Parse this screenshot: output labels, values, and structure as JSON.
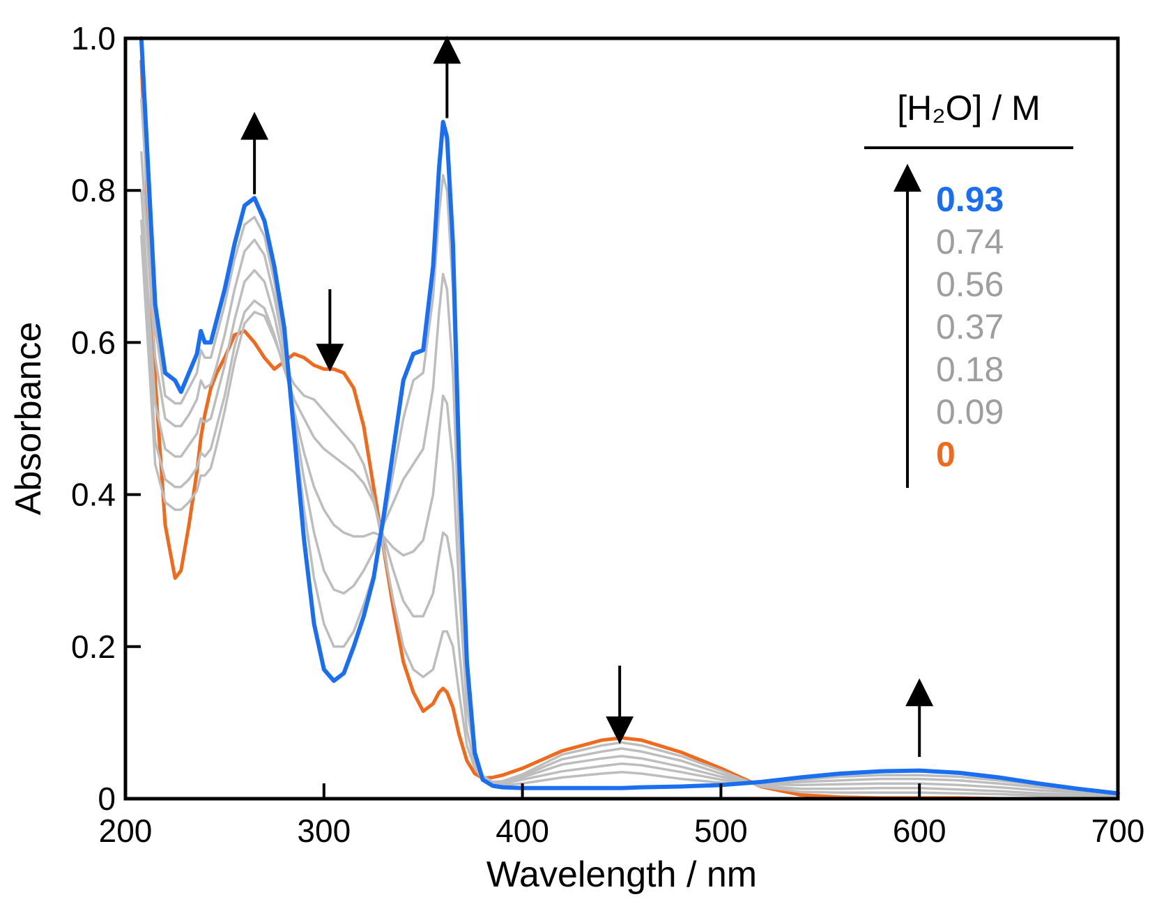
{
  "chart_data": {
    "type": "line",
    "title": "",
    "xlabel": "Wavelength / nm",
    "ylabel": "Absorbance",
    "xlim": [
      200,
      700
    ],
    "ylim": [
      0,
      1.0
    ],
    "x_ticks": [
      200,
      300,
      400,
      500,
      600,
      700
    ],
    "x_tick_labels": [
      "200",
      "300",
      "400",
      "500",
      "600",
      "700"
    ],
    "y_ticks": [
      0,
      0.2,
      0.4,
      0.6,
      0.8,
      1.0
    ],
    "y_tick_labels": [
      "0",
      "0.2",
      "0.4",
      "0.6",
      "0.8",
      "1.0"
    ],
    "grid": false,
    "legend": {
      "title": "[H₂O] / M",
      "position": "top-right",
      "direction_arrow": "up"
    },
    "colors": {
      "first": "#1a6ef0",
      "middle": "#bdbdbd",
      "last": "#f06a1e"
    },
    "x": [
      208,
      215,
      220,
      225,
      228,
      232,
      236,
      238,
      240,
      243,
      246,
      250,
      255,
      260,
      265,
      270,
      275,
      280,
      285,
      290,
      295,
      300,
      305,
      310,
      315,
      320,
      325,
      330,
      335,
      340,
      345,
      350,
      355,
      358,
      360,
      362,
      365,
      368,
      372,
      376,
      380,
      385,
      390,
      400,
      420,
      440,
      450,
      460,
      480,
      500,
      520,
      540,
      560,
      580,
      600,
      620,
      640,
      660,
      680,
      700
    ],
    "series": [
      {
        "name": "0.93",
        "color": "#1a6ef0",
        "width": 6,
        "values": [
          1.0,
          0.65,
          0.56,
          0.55,
          0.535,
          0.56,
          0.585,
          0.615,
          0.6,
          0.6,
          0.63,
          0.67,
          0.73,
          0.78,
          0.79,
          0.76,
          0.7,
          0.62,
          0.48,
          0.34,
          0.23,
          0.17,
          0.155,
          0.165,
          0.2,
          0.24,
          0.29,
          0.37,
          0.46,
          0.55,
          0.585,
          0.59,
          0.7,
          0.83,
          0.89,
          0.87,
          0.73,
          0.45,
          0.18,
          0.06,
          0.025,
          0.017,
          0.015,
          0.014,
          0.014,
          0.014,
          0.014,
          0.015,
          0.016,
          0.018,
          0.022,
          0.028,
          0.033,
          0.036,
          0.037,
          0.034,
          0.028,
          0.02,
          0.013,
          0.007
        ]
      },
      {
        "name": "0.74",
        "color": "#bdbdbd",
        "width": 3.5,
        "values": [
          0.92,
          0.62,
          0.53,
          0.52,
          0.52,
          0.54,
          0.56,
          0.59,
          0.58,
          0.58,
          0.61,
          0.65,
          0.71,
          0.755,
          0.765,
          0.74,
          0.68,
          0.6,
          0.49,
          0.38,
          0.29,
          0.23,
          0.2,
          0.2,
          0.22,
          0.255,
          0.295,
          0.36,
          0.43,
          0.5,
          0.55,
          0.56,
          0.66,
          0.77,
          0.82,
          0.8,
          0.67,
          0.41,
          0.17,
          0.065,
          0.03,
          0.02,
          0.018,
          0.02,
          0.028,
          0.033,
          0.035,
          0.033,
          0.026,
          0.021,
          0.021,
          0.025,
          0.029,
          0.031,
          0.031,
          0.029,
          0.024,
          0.018,
          0.012,
          0.007
        ]
      },
      {
        "name": "0.56",
        "color": "#bdbdbd",
        "width": 3.5,
        "values": [
          0.85,
          0.58,
          0.5,
          0.49,
          0.49,
          0.505,
          0.525,
          0.55,
          0.54,
          0.545,
          0.57,
          0.61,
          0.67,
          0.72,
          0.735,
          0.715,
          0.66,
          0.59,
          0.5,
          0.42,
          0.35,
          0.3,
          0.275,
          0.27,
          0.28,
          0.3,
          0.325,
          0.36,
          0.39,
          0.42,
          0.44,
          0.46,
          0.54,
          0.64,
          0.69,
          0.67,
          0.56,
          0.35,
          0.15,
          0.06,
          0.03,
          0.022,
          0.02,
          0.025,
          0.036,
          0.043,
          0.046,
          0.044,
          0.035,
          0.025,
          0.02,
          0.022,
          0.024,
          0.026,
          0.026,
          0.024,
          0.02,
          0.015,
          0.01,
          0.006
        ]
      },
      {
        "name": "0.37",
        "color": "#bdbdbd",
        "width": 3.5,
        "values": [
          0.8,
          0.52,
          0.46,
          0.45,
          0.45,
          0.465,
          0.48,
          0.5,
          0.495,
          0.5,
          0.53,
          0.57,
          0.63,
          0.68,
          0.695,
          0.68,
          0.635,
          0.575,
          0.51,
          0.455,
          0.41,
          0.38,
          0.36,
          0.35,
          0.345,
          0.345,
          0.35,
          0.345,
          0.33,
          0.32,
          0.325,
          0.34,
          0.4,
          0.48,
          0.53,
          0.52,
          0.44,
          0.28,
          0.12,
          0.055,
          0.03,
          0.022,
          0.021,
          0.028,
          0.045,
          0.053,
          0.056,
          0.053,
          0.042,
          0.029,
          0.019,
          0.018,
          0.019,
          0.02,
          0.02,
          0.018,
          0.015,
          0.011,
          0.008,
          0.005
        ]
      },
      {
        "name": "0.18",
        "color": "#bdbdbd",
        "width": 3.5,
        "values": [
          0.76,
          0.47,
          0.42,
          0.41,
          0.41,
          0.42,
          0.435,
          0.455,
          0.45,
          0.46,
          0.49,
          0.53,
          0.595,
          0.64,
          0.655,
          0.645,
          0.61,
          0.565,
          0.525,
          0.5,
          0.475,
          0.46,
          0.45,
          0.44,
          0.43,
          0.415,
          0.39,
          0.345,
          0.3,
          0.26,
          0.24,
          0.24,
          0.27,
          0.32,
          0.35,
          0.345,
          0.3,
          0.2,
          0.09,
          0.045,
          0.028,
          0.022,
          0.022,
          0.03,
          0.052,
          0.062,
          0.066,
          0.062,
          0.05,
          0.033,
          0.017,
          0.013,
          0.013,
          0.014,
          0.014,
          0.012,
          0.01,
          0.007,
          0.005,
          0.004
        ]
      },
      {
        "name": "0.09",
        "color": "#bdbdbd",
        "width": 3.5,
        "values": [
          0.74,
          0.44,
          0.39,
          0.38,
          0.38,
          0.39,
          0.405,
          0.425,
          0.425,
          0.435,
          0.465,
          0.51,
          0.575,
          0.625,
          0.64,
          0.635,
          0.605,
          0.57,
          0.545,
          0.53,
          0.525,
          0.51,
          0.495,
          0.48,
          0.465,
          0.44,
          0.395,
          0.33,
          0.26,
          0.2,
          0.17,
          0.16,
          0.17,
          0.2,
          0.22,
          0.22,
          0.2,
          0.14,
          0.07,
          0.04,
          0.025,
          0.022,
          0.023,
          0.032,
          0.058,
          0.07,
          0.074,
          0.07,
          0.056,
          0.037,
          0.016,
          0.009,
          0.008,
          0.008,
          0.008,
          0.007,
          0.006,
          0.004,
          0.003,
          0.002
        ]
      },
      {
        "name": "0",
        "color": "#f06a1e",
        "width": 5,
        "values": [
          0.97,
          0.55,
          0.36,
          0.29,
          0.3,
          0.36,
          0.43,
          0.475,
          0.505,
          0.54,
          0.56,
          0.58,
          0.61,
          0.615,
          0.6,
          0.58,
          0.565,
          0.575,
          0.585,
          0.58,
          0.57,
          0.565,
          0.565,
          0.56,
          0.54,
          0.49,
          0.41,
          0.33,
          0.25,
          0.18,
          0.14,
          0.115,
          0.125,
          0.14,
          0.145,
          0.14,
          0.12,
          0.085,
          0.05,
          0.033,
          0.027,
          0.028,
          0.031,
          0.04,
          0.063,
          0.077,
          0.08,
          0.077,
          0.061,
          0.04,
          0.016,
          0.005,
          0.002,
          0.001,
          0.001,
          0.001,
          0.0,
          0.0,
          0.0,
          0.0
        ]
      }
    ],
    "annotations": [
      {
        "type": "arrow",
        "direction": "up",
        "x": 265,
        "y_from": 0.795,
        "y_to": 0.885
      },
      {
        "type": "arrow",
        "direction": "down",
        "x": 303,
        "y_from": 0.67,
        "y_to": 0.58
      },
      {
        "type": "arrow",
        "direction": "up",
        "x": 362,
        "y_from": 0.895,
        "y_to": 0.985
      },
      {
        "type": "arrow",
        "direction": "down",
        "x": 449,
        "y_from": 0.175,
        "y_to": 0.09
      },
      {
        "type": "arrow",
        "direction": "up",
        "x": 600,
        "y_from": 0.055,
        "y_to": 0.14
      }
    ]
  }
}
